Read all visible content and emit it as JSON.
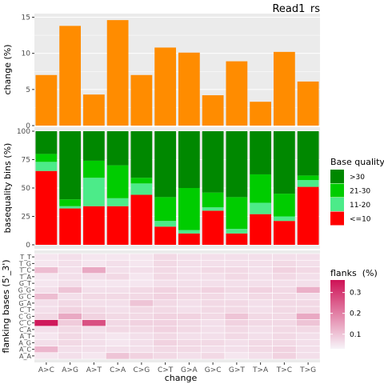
{
  "chart_data": {
    "title": "Read1_rs",
    "xlabel": "change",
    "categories": [
      "A>C",
      "A>G",
      "A>T",
      "C>A",
      "C>G",
      "C>T",
      "G>A",
      "G>C",
      "G>T",
      "T>A",
      "T>C",
      "T>G"
    ],
    "panels": [
      {
        "type": "bar",
        "ylabel": "change (%)",
        "ylim": [
          0,
          15.5
        ],
        "yticks": [
          0,
          5,
          10,
          15
        ],
        "color": "#ff8c00",
        "values": [
          7.0,
          13.8,
          4.3,
          14.6,
          7.0,
          10.8,
          10.1,
          4.2,
          8.9,
          3.3,
          10.2,
          6.1
        ]
      },
      {
        "type": "stacked-bar",
        "ylabel": "basequality bins (%)",
        "ylim": [
          0,
          100
        ],
        "yticks": [
          0,
          25,
          50,
          75,
          100
        ],
        "legend_title": "Base quality",
        "legend_position": "right",
        "series": [
          {
            "name": "<=10",
            "color": "#ff0000",
            "values": [
              65,
              32,
              34,
              34,
              44,
              16,
              10,
              30,
              10,
              27,
              21,
              51
            ]
          },
          {
            "name": "11-20",
            "color": "#4ceb89",
            "values": [
              8,
              2,
              25,
              7,
              10,
              5,
              3,
              3,
              4,
              10,
              4,
              6
            ]
          },
          {
            "name": "21-30",
            "color": "#00cc00",
            "values": [
              7,
              6,
              15,
              29,
              5,
              21,
              37,
              13,
              28,
              25,
              20,
              4
            ]
          },
          {
            "name": ">30",
            "color": "#008800",
            "values": [
              20,
              60,
              26,
              30,
              41,
              58,
              50,
              54,
              58,
              38,
              55,
              39
            ]
          }
        ]
      },
      {
        "type": "heatmap",
        "ylabel": "flanking bases (5'_3')",
        "rows": [
          "A_A",
          "A_C",
          "A_G",
          "A_T",
          "C_A",
          "C_C",
          "C_G",
          "C_T",
          "G_A",
          "G_C",
          "G_G",
          "G_T",
          "T_A",
          "T_C",
          "T_G",
          "T_T"
        ],
        "legend_title": "flanks  (%)",
        "legend_ticks": [
          0.1,
          0.2,
          0.3
        ],
        "color_low": "#f7f4f9",
        "color_high": "#ce1256",
        "value_range": [
          0.03,
          0.36
        ],
        "values": [
          [
            0.05,
            0.06,
            0.05,
            0.1,
            0.08,
            0.07,
            0.06,
            0.07,
            0.05,
            0.06,
            0.08,
            0.06
          ],
          [
            0.12,
            0.06,
            0.06,
            0.06,
            0.06,
            0.07,
            0.07,
            0.06,
            0.06,
            0.07,
            0.08,
            0.06
          ],
          [
            0.06,
            0.07,
            0.06,
            0.05,
            0.06,
            0.08,
            0.07,
            0.07,
            0.06,
            0.07,
            0.07,
            0.06
          ],
          [
            0.05,
            0.07,
            0.06,
            0.05,
            0.06,
            0.07,
            0.06,
            0.06,
            0.07,
            0.06,
            0.07,
            0.06
          ],
          [
            0.06,
            0.07,
            0.06,
            0.07,
            0.07,
            0.08,
            0.07,
            0.06,
            0.07,
            0.06,
            0.07,
            0.07
          ],
          [
            0.35,
            0.09,
            0.27,
            0.07,
            0.08,
            0.08,
            0.07,
            0.06,
            0.08,
            0.07,
            0.07,
            0.1
          ],
          [
            0.07,
            0.14,
            0.08,
            0.07,
            0.07,
            0.08,
            0.08,
            0.07,
            0.1,
            0.07,
            0.07,
            0.14
          ],
          [
            0.06,
            0.08,
            0.07,
            0.06,
            0.07,
            0.07,
            0.06,
            0.07,
            0.07,
            0.06,
            0.07,
            0.07
          ],
          [
            0.06,
            0.07,
            0.06,
            0.06,
            0.1,
            0.07,
            0.06,
            0.07,
            0.07,
            0.06,
            0.07,
            0.07
          ],
          [
            0.11,
            0.06,
            0.07,
            0.07,
            0.07,
            0.08,
            0.07,
            0.07,
            0.06,
            0.07,
            0.07,
            0.06
          ],
          [
            0.06,
            0.1,
            0.06,
            0.06,
            0.07,
            0.08,
            0.07,
            0.08,
            0.07,
            0.08,
            0.07,
            0.13
          ],
          [
            0.05,
            0.06,
            0.05,
            0.05,
            0.05,
            0.06,
            0.06,
            0.06,
            0.06,
            0.06,
            0.06,
            0.06
          ],
          [
            0.05,
            0.06,
            0.06,
            0.07,
            0.05,
            0.07,
            0.06,
            0.06,
            0.07,
            0.06,
            0.07,
            0.06
          ],
          [
            0.11,
            0.06,
            0.14,
            0.06,
            0.06,
            0.07,
            0.06,
            0.07,
            0.07,
            0.06,
            0.08,
            0.07
          ],
          [
            0.05,
            0.06,
            0.05,
            0.06,
            0.05,
            0.07,
            0.06,
            0.06,
            0.06,
            0.06,
            0.07,
            0.06
          ],
          [
            0.05,
            0.06,
            0.05,
            0.05,
            0.05,
            0.07,
            0.06,
            0.06,
            0.06,
            0.06,
            0.06,
            0.06
          ]
        ]
      }
    ]
  }
}
